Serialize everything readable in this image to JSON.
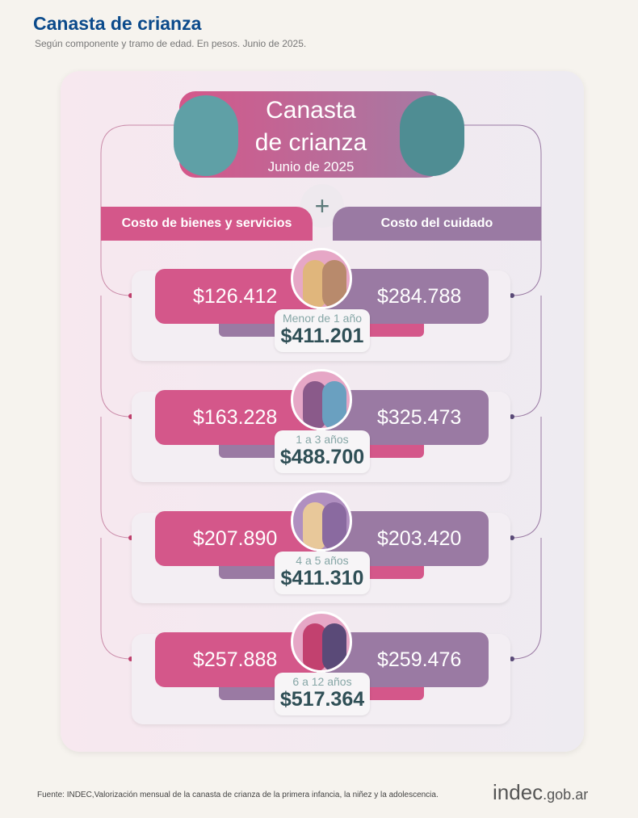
{
  "header": {
    "title": "Canasta de crianza",
    "subtitle": "Según componente y tramo de edad. En pesos. Junio de 2025."
  },
  "infographic": {
    "title_line1": "Canasta",
    "title_line2": "de crianza",
    "date": "Junio de 2025",
    "left_label": "Costo de bienes y servicios",
    "right_label": "Costo del cuidado",
    "plus": "+",
    "rows": [
      {
        "age": "Menor de 1 año",
        "goods": "$126.412",
        "care": "$284.788",
        "total": "$411.201"
      },
      {
        "age": "1 a 3 años",
        "goods": "$163.228",
        "care": "$325.473",
        "total": "$488.700"
      },
      {
        "age": "4 a 5 años",
        "goods": "$207.890",
        "care": "$203.420",
        "total": "$411.310"
      },
      {
        "age": "6 a 12 años",
        "goods": "$257.888",
        "care": "$259.476",
        "total": "$517.364"
      }
    ]
  },
  "colors": {
    "pink": "#d4578a",
    "purple": "#9a7aa3",
    "title_blue": "#0b4a8b"
  },
  "footer": {
    "source": "Fuente: INDEC,Valorización mensual de la canasta de crianza de la primera infancia, la niñez y la adolescencia.",
    "logo_main": "indec",
    "logo_suffix": ".gob.ar"
  }
}
